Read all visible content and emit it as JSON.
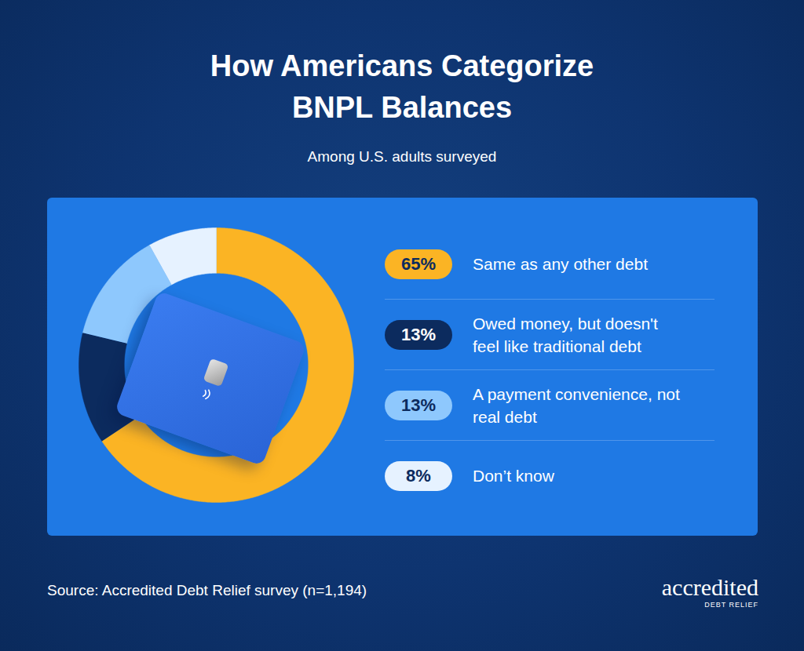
{
  "chart_data": {
    "type": "donut",
    "title": "How Americans Categorize BNPL Balances",
    "subtitle": "Among U.S. adults surveyed",
    "categories": [
      "Same as any other debt",
      "Owed money, but doesn't feel like traditional debt",
      "A payment convenience, not real debt",
      "Don’t know"
    ],
    "values": [
      65,
      13,
      13,
      8
    ],
    "value_labels": [
      "65%",
      "13%",
      "13%",
      "8%"
    ],
    "colors": [
      "#fbb424",
      "#0c2b5e",
      "#8ec8fd",
      "#e6f2ff"
    ],
    "data_labels": true,
    "legend": "right",
    "source": "Source: Accredited Debt Relief survey (n=1,194)",
    "brand": "accredited",
    "brand_tagline": "DEBT RELIEF"
  }
}
